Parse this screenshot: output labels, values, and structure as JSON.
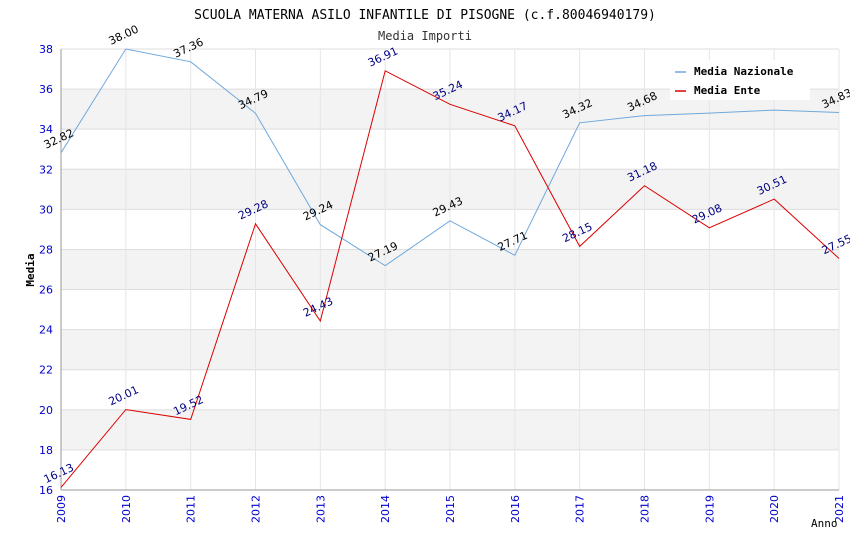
{
  "chart_data": {
    "type": "line",
    "title": "SCUOLA MATERNA ASILO INFANTILE DI PISOGNE (c.f.80046940179)",
    "subtitle": "Media Importi",
    "xlabel": "Anno",
    "ylabel": "Media",
    "ylim": [
      16,
      38
    ],
    "y_ticks": [
      "16",
      "18",
      "20",
      "22",
      "24",
      "26",
      "28",
      "30",
      "32",
      "34",
      "36",
      "38"
    ],
    "x": [
      "2009",
      "2010",
      "2011",
      "2012",
      "2013",
      "2014",
      "2015",
      "2016",
      "2017",
      "2018",
      "2019",
      "2020",
      "2021"
    ],
    "grid": true,
    "legend_position": "top-right",
    "series": [
      {
        "name": "Media Nazionale",
        "color": "#6fa8dc",
        "label_color": "#000000",
        "values": [
          32.82,
          38.0,
          37.36,
          34.79,
          29.24,
          27.19,
          29.43,
          27.71,
          34.32,
          34.68,
          34.8,
          34.95,
          34.83
        ],
        "labels": [
          "32.82",
          "38.00",
          "37.36",
          "34.79",
          "29.24",
          "27.19",
          "29.43",
          "27.71",
          "34.32",
          "34.68",
          "",
          "",
          "34.83"
        ]
      },
      {
        "name": "Media Ente",
        "color": "#dd0000",
        "label_color": "#000080",
        "values": [
          16.13,
          20.01,
          19.52,
          29.28,
          24.43,
          36.91,
          35.24,
          34.17,
          28.15,
          31.18,
          29.08,
          30.51,
          27.55
        ],
        "labels": [
          "16.13",
          "20.01",
          "19.52",
          "29.28",
          "24.43",
          "36.91",
          "35.24",
          "34.17",
          "28.15",
          "31.18",
          "29.08",
          "30.51",
          "27.55"
        ]
      }
    ]
  }
}
